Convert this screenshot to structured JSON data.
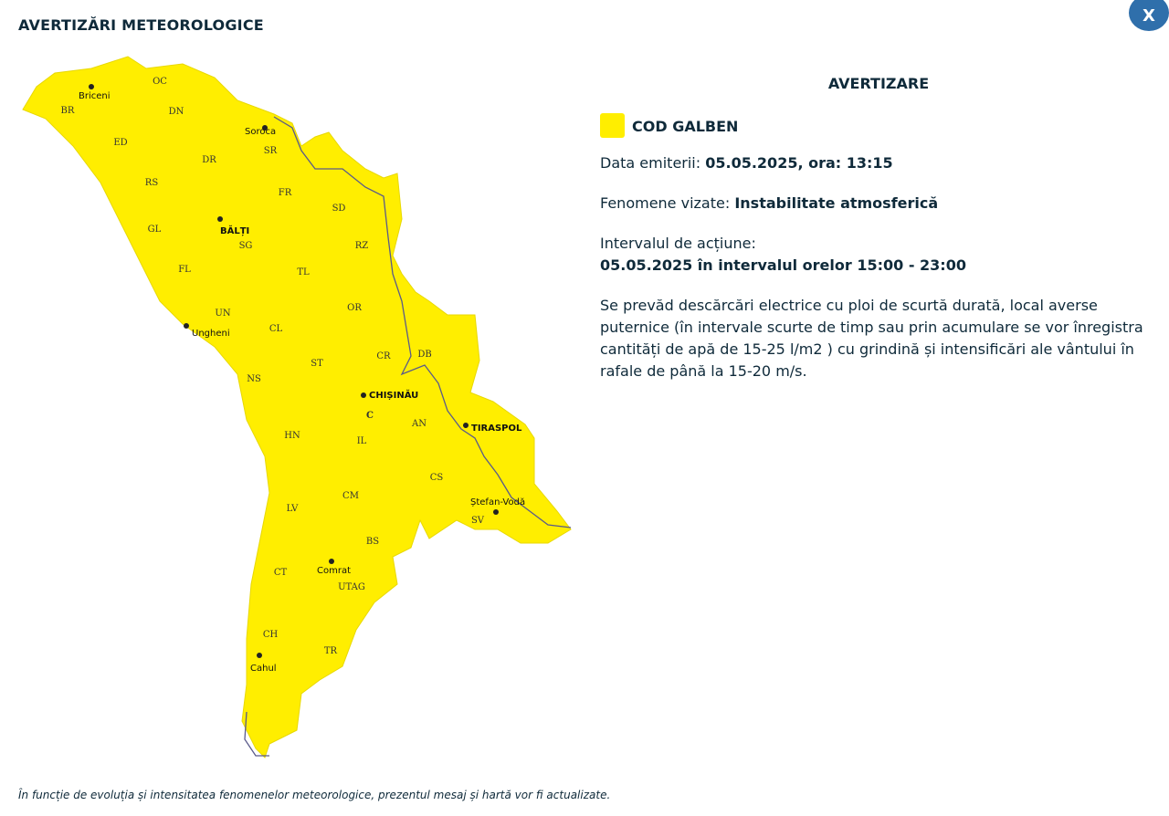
{
  "header": {
    "title": "AVERTIZĂRI METEOROLOGICE",
    "close_label": "X"
  },
  "map": {
    "fill_color": "#ffee00",
    "districts": [
      "OC",
      "BR",
      "DN",
      "ED",
      "DR",
      "SR",
      "RS",
      "FR",
      "SD",
      "GL",
      "SG",
      "RZ",
      "FL",
      "TL",
      "UN",
      "OR",
      "CL",
      "CR",
      "DB",
      "ST",
      "NS",
      "C",
      "AN",
      "HN",
      "IL",
      "CS",
      "CM",
      "LV",
      "SV",
      "BS",
      "CT",
      "UTAG",
      "CH",
      "TR"
    ],
    "cities": [
      "Briceni",
      "Soroca",
      "BĂLȚI",
      "Ungheni",
      "CHIȘINĂU",
      "TIRASPOL",
      "Ștefan-Vodă",
      "Comrat",
      "Cahul"
    ]
  },
  "warning": {
    "heading": "AVERTIZARE",
    "code_label": "COD GALBEN",
    "code_color": "#ffee00",
    "issue_label": "Data emiterii:",
    "issue_value": "05.05.2025, ora: 13:15",
    "phenomena_label": "Fenomene vizate:",
    "phenomena_value": "Instabilitate atmosferică",
    "interval_label": "Intervalul de acțiune:",
    "interval_value": "05.05.2025 în intervalul orelor 15:00 - 23:00",
    "description": "Se prevăd descărcări electrice cu ploi de scurtă durată, local averse puternice (în intervale scurte de timp sau prin acumulare se vor înregistra cantități de apă de 15-25 l/m2 ) cu grindină și intensificări ale vântului în rafale de până la 15-20 m/s."
  },
  "footer": {
    "note": "În funcție de evoluția și intensitatea fenomenelor meteorologice, prezentul mesaj și hartă vor fi actualizate."
  }
}
